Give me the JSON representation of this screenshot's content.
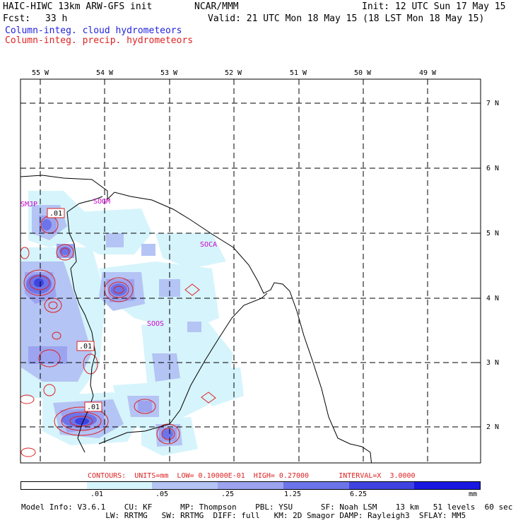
{
  "header": {
    "model_title": "HAIC-HIWC 13km ARW-GFS init",
    "org": "NCAR/MMM",
    "init": "Init: 12 UTC Sun 17 May 15",
    "fcst_label": "Fcst:",
    "fcst_value": "33 h",
    "valid": "Valid: 21 UTC Mon 18 May 15 (18 LST Mon 18 May 15)",
    "field_cloud": "Column-integ. cloud hydrometeors",
    "field_precip": "Column-integ. precip. hydrometeors"
  },
  "map": {
    "lon_labels": [
      "55 W",
      "54 W",
      "53 W",
      "52 W",
      "51 W",
      "50 W",
      "49 W"
    ],
    "lat_labels": [
      "7 N",
      "6 N",
      "5 N",
      "4 N",
      "3 N",
      "2 N"
    ],
    "stations": [
      "SMJP",
      "SOGM",
      "SOCA",
      "SOOS"
    ],
    "contour_labels": [
      ".01",
      ".01",
      ".01"
    ]
  },
  "contours_info": "CONTOURS:  UNITS=mm  LOW= 0.10000E-01  HIGH= 0.27000       INTERVAL=X  3.0000",
  "legend": {
    "colors": [
      "#ffffff",
      "#d6f4fb",
      "#b4c4f4",
      "#9ca4f0",
      "#6c74ea",
      "#3f44e0",
      "#1818e0"
    ],
    "labels": [
      ".01",
      ".05",
      ".25",
      "1.25",
      "6.25"
    ],
    "unit": "mm"
  },
  "footer": {
    "line1": "Model Info: V3.6.1    CU: KF      MP: Thompson    PBL: YSU      SF: Noah LSM    13 km   51 levels  60 sec",
    "line2": "                  LW: RRTMG   SW: RRTMG  DIFF: full   KM: 2D Smagor DAMP: Rayleigh3  SFLAY: MM5"
  },
  "colors": {
    "cloud_label": "#2222dd",
    "precip_label": "#dd2222",
    "station": "#cc00cc",
    "coast": "#000000"
  }
}
